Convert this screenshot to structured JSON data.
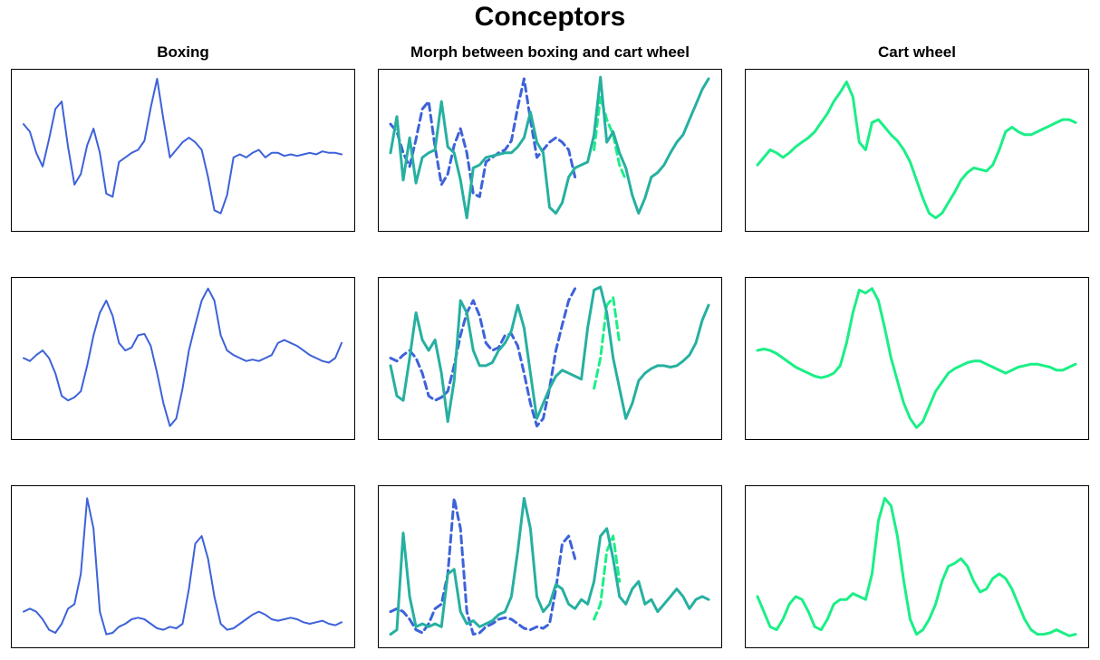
{
  "title": "Conceptors",
  "column_titles": [
    "Boxing",
    "Morph between boxing and cart wheel",
    "Cart wheel"
  ],
  "colors": {
    "boxing": "#3d62d9",
    "morph": "#26b0a0",
    "cartwheel": "#1aef86",
    "frame": "#000000"
  },
  "chart_data": {
    "type": "line",
    "title": "Conceptors",
    "grid": false,
    "axes_visible": false,
    "x": [
      0,
      1,
      2,
      3,
      4,
      5,
      6,
      7,
      8,
      9,
      10,
      11,
      12,
      13,
      14,
      15,
      16,
      17,
      18,
      19,
      20,
      21,
      22,
      23,
      24,
      25,
      26,
      27,
      28,
      29,
      30,
      31,
      32,
      33,
      34,
      35,
      36,
      37,
      38,
      39,
      40,
      41,
      42,
      43,
      44,
      45,
      46,
      47,
      48,
      49,
      50
    ],
    "ylim": [
      0,
      1
    ],
    "rows": [
      {
        "boxing": [
          0.67,
          0.62,
          0.48,
          0.39,
          0.57,
          0.77,
          0.82,
          0.52,
          0.27,
          0.34,
          0.53,
          0.64,
          0.48,
          0.21,
          0.19,
          0.42,
          0.45,
          0.48,
          0.5,
          0.56,
          0.78,
          0.97,
          0.7,
          0.45,
          0.5,
          0.55,
          0.58,
          0.55,
          0.5,
          0.32,
          0.1,
          0.08,
          0.2,
          0.45,
          0.47,
          0.45,
          0.48,
          0.5,
          0.45,
          0.48,
          0.48,
          0.46,
          0.47,
          0.46,
          0.47,
          0.48,
          0.47,
          0.49,
          0.48,
          0.48,
          0.47
        ],
        "cartwheel": [
          0.4,
          0.45,
          0.5,
          0.48,
          0.45,
          0.48,
          0.52,
          0.55,
          0.58,
          0.62,
          0.68,
          0.74,
          0.82,
          0.88,
          0.95,
          0.85,
          0.55,
          0.5,
          0.68,
          0.7,
          0.65,
          0.6,
          0.56,
          0.5,
          0.42,
          0.3,
          0.18,
          0.08,
          0.05,
          0.08,
          0.15,
          0.22,
          0.3,
          0.35,
          0.38,
          0.37,
          0.36,
          0.4,
          0.5,
          0.62,
          0.65,
          0.62,
          0.6,
          0.6,
          0.62,
          0.64,
          0.66,
          0.68,
          0.7,
          0.7,
          0.68
        ],
        "morph": [
          0.48,
          0.72,
          0.3,
          0.58,
          0.28,
          0.45,
          0.48,
          0.5,
          0.82,
          0.52,
          0.48,
          0.3,
          0.05,
          0.38,
          0.4,
          0.45,
          0.46,
          0.47,
          0.48,
          0.48,
          0.52,
          0.58,
          0.75,
          0.55,
          0.48,
          0.12,
          0.08,
          0.15,
          0.32,
          0.38,
          0.4,
          0.42,
          0.6,
          0.98,
          0.55,
          0.62,
          0.48,
          0.38,
          0.2,
          0.08,
          0.18,
          0.32,
          0.35,
          0.4,
          0.48,
          0.55,
          0.6,
          0.7,
          0.8,
          0.9,
          0.97
        ],
        "morph_dashed": [
          null,
          null,
          null,
          null,
          null,
          null,
          null,
          null,
          null,
          null,
          null,
          null,
          null,
          null,
          null,
          null,
          null,
          null,
          null,
          null,
          null,
          null,
          null,
          null,
          null,
          null,
          null,
          null,
          null,
          null,
          null,
          null,
          0.5,
          0.85,
          0.7,
          0.6,
          0.4,
          0.3,
          null,
          null,
          null,
          null,
          null,
          null,
          null,
          null,
          null,
          null,
          null,
          null,
          null
        ]
      },
      {
        "boxing": [
          0.5,
          0.48,
          0.52,
          0.55,
          0.5,
          0.4,
          0.25,
          0.22,
          0.24,
          0.28,
          0.45,
          0.65,
          0.8,
          0.88,
          0.78,
          0.6,
          0.55,
          0.57,
          0.65,
          0.66,
          0.58,
          0.4,
          0.2,
          0.05,
          0.1,
          0.3,
          0.55,
          0.72,
          0.88,
          0.96,
          0.88,
          0.65,
          0.55,
          0.52,
          0.5,
          0.48,
          0.49,
          0.48,
          0.5,
          0.52,
          0.6,
          0.62,
          0.6,
          0.58,
          0.55,
          0.52,
          0.5,
          0.48,
          0.47,
          0.5,
          0.6
        ],
        "cartwheel": [
          0.55,
          0.56,
          0.55,
          0.53,
          0.5,
          0.47,
          0.44,
          0.42,
          0.4,
          0.38,
          0.37,
          0.38,
          0.4,
          0.45,
          0.6,
          0.8,
          0.95,
          0.93,
          0.96,
          0.88,
          0.7,
          0.5,
          0.35,
          0.2,
          0.1,
          0.04,
          0.08,
          0.18,
          0.28,
          0.34,
          0.4,
          0.43,
          0.45,
          0.47,
          0.48,
          0.48,
          0.46,
          0.44,
          0.42,
          0.4,
          0.42,
          0.44,
          0.45,
          0.46,
          0.46,
          0.45,
          0.44,
          0.42,
          0.42,
          0.44,
          0.46
        ],
        "morph": [
          0.45,
          0.25,
          0.22,
          0.5,
          0.8,
          0.62,
          0.55,
          0.62,
          0.4,
          0.08,
          0.35,
          0.88,
          0.8,
          0.55,
          0.45,
          0.45,
          0.47,
          0.55,
          0.6,
          0.68,
          0.85,
          0.7,
          0.4,
          0.1,
          0.2,
          0.3,
          0.38,
          0.42,
          0.4,
          0.38,
          0.36,
          0.7,
          0.95,
          0.97,
          0.8,
          0.5,
          0.3,
          0.1,
          0.2,
          0.35,
          0.4,
          0.43,
          0.45,
          0.45,
          0.44,
          0.45,
          0.48,
          0.52,
          0.6,
          0.75,
          0.85
        ],
        "morph_dashed": [
          null,
          null,
          null,
          null,
          null,
          null,
          null,
          null,
          null,
          null,
          null,
          null,
          null,
          null,
          null,
          null,
          null,
          null,
          null,
          null,
          null,
          null,
          null,
          null,
          null,
          null,
          null,
          null,
          null,
          null,
          null,
          null,
          0.3,
          0.5,
          0.85,
          0.9,
          0.6,
          null,
          null,
          null,
          null,
          null,
          null,
          null,
          null,
          null,
          null,
          null,
          null,
          null,
          null
        ]
      },
      {
        "boxing": [
          0.2,
          0.22,
          0.2,
          0.15,
          0.08,
          0.06,
          0.12,
          0.22,
          0.25,
          0.45,
          0.95,
          0.75,
          0.2,
          0.05,
          0.06,
          0.1,
          0.12,
          0.15,
          0.16,
          0.15,
          0.12,
          0.09,
          0.08,
          0.1,
          0.09,
          0.12,
          0.35,
          0.65,
          0.7,
          0.55,
          0.3,
          0.12,
          0.08,
          0.09,
          0.12,
          0.15,
          0.18,
          0.2,
          0.18,
          0.15,
          0.14,
          0.15,
          0.16,
          0.15,
          0.13,
          0.12,
          0.13,
          0.14,
          0.12,
          0.11,
          0.13
        ],
        "cartwheel": [
          0.3,
          0.2,
          0.1,
          0.08,
          0.15,
          0.25,
          0.3,
          0.28,
          0.2,
          0.1,
          0.08,
          0.15,
          0.25,
          0.28,
          0.28,
          0.32,
          0.3,
          0.28,
          0.45,
          0.8,
          0.95,
          0.9,
          0.7,
          0.4,
          0.15,
          0.05,
          0.08,
          0.15,
          0.25,
          0.4,
          0.5,
          0.52,
          0.55,
          0.5,
          0.4,
          0.33,
          0.35,
          0.42,
          0.45,
          0.42,
          0.35,
          0.25,
          0.15,
          0.08,
          0.05,
          0.05,
          0.06,
          0.08,
          0.06,
          0.04,
          0.05
        ],
        "morph": [
          0.05,
          0.08,
          0.72,
          0.3,
          0.1,
          0.12,
          0.1,
          0.12,
          0.1,
          0.45,
          0.48,
          0.2,
          0.12,
          0.14,
          0.1,
          0.12,
          0.14,
          0.18,
          0.2,
          0.3,
          0.6,
          0.95,
          0.75,
          0.3,
          0.2,
          0.25,
          0.38,
          0.35,
          0.25,
          0.22,
          0.28,
          0.25,
          0.4,
          0.7,
          0.75,
          0.55,
          0.3,
          0.25,
          0.35,
          0.4,
          0.25,
          0.28,
          0.2,
          0.25,
          0.3,
          0.35,
          0.3,
          0.22,
          0.28,
          0.3,
          0.28
        ],
        "morph_dashed": [
          null,
          null,
          null,
          null,
          null,
          null,
          null,
          null,
          null,
          null,
          null,
          null,
          null,
          null,
          null,
          null,
          null,
          null,
          null,
          null,
          null,
          null,
          null,
          null,
          null,
          null,
          null,
          null,
          null,
          null,
          null,
          null,
          0.15,
          0.25,
          0.6,
          0.7,
          0.4,
          null,
          null,
          null,
          null,
          null,
          null,
          null,
          null,
          null,
          null,
          null,
          null,
          null,
          null
        ]
      }
    ]
  }
}
